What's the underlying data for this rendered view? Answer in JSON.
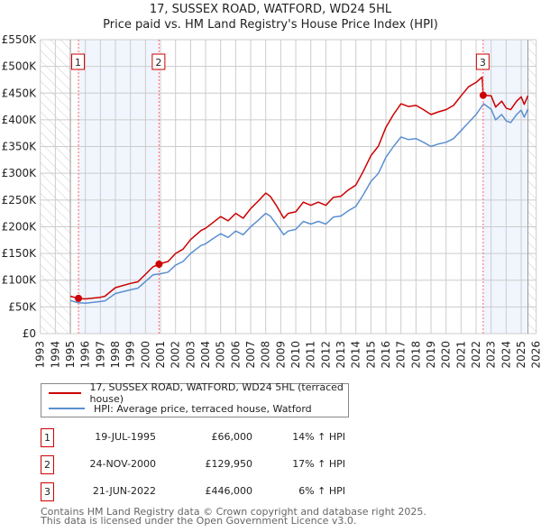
{
  "chart_data": {
    "type": "line",
    "title": "17, SUSSEX ROAD, WATFORD, WD24 5HL",
    "subtitle": "Price paid vs. HM Land Registry's House Price Index (HPI)",
    "xlim": [
      1993,
      2026
    ],
    "ylim": [
      0,
      550000
    ],
    "x_ticks": [
      1993,
      1994,
      1995,
      1996,
      1997,
      1998,
      1999,
      2000,
      2001,
      2002,
      2003,
      2004,
      2005,
      2006,
      2007,
      2008,
      2009,
      2010,
      2011,
      2012,
      2013,
      2014,
      2015,
      2016,
      2017,
      2018,
      2019,
      2020,
      2021,
      2022,
      2023,
      2024,
      2025,
      2026
    ],
    "y_ticks": [
      0,
      50000,
      100000,
      150000,
      200000,
      250000,
      300000,
      350000,
      400000,
      450000,
      500000,
      550000
    ],
    "y_tick_labels": [
      "£0",
      "£50K",
      "£100K",
      "£150K",
      "£200K",
      "£250K",
      "£300K",
      "£350K",
      "£400K",
      "£450K",
      "£500K",
      "£550K"
    ],
    "grid": true,
    "data_start": 1995.0,
    "data_end": 2025.45,
    "series": [
      {
        "name": "17, SUSSEX ROAD, WATFORD, WD24 5HL (terraced house)",
        "color": "#cc0000",
        "x": [
          1995.0,
          1995.5,
          1996,
          1997,
          1997.3,
          1998,
          1999,
          1999.5,
          2000.5,
          2000.9,
          2001,
          2001.5,
          2002,
          2002.5,
          2003,
          2003.7,
          2004,
          2004.5,
          2005,
          2005.5,
          2006,
          2006.5,
          2007,
          2007.5,
          2008,
          2008.3,
          2008.7,
          2009.2,
          2009.5,
          2010,
          2010.5,
          2011,
          2011.5,
          2012,
          2012.5,
          2013,
          2013.5,
          2014,
          2014.5,
          2015,
          2015.5,
          2016,
          2016.5,
          2017,
          2017.5,
          2018,
          2018.5,
          2019,
          2019.5,
          2020,
          2020.5,
          2021,
          2021.5,
          2022,
          2022.4,
          2022.47,
          2023,
          2023.3,
          2023.7,
          2024,
          2024.3,
          2024.7,
          2025,
          2025.2,
          2025.45
        ],
        "y": [
          70,
          66,
          65,
          68,
          70,
          86,
          94,
          97,
          125,
          130,
          131,
          135,
          150,
          158,
          176,
          193,
          197,
          208,
          219,
          211,
          225,
          216,
          234,
          248,
          263,
          257,
          240,
          216,
          225,
          228,
          246,
          240,
          246,
          240,
          255,
          257,
          269,
          278,
          304,
          333,
          351,
          386,
          410,
          430,
          425,
          427,
          419,
          410,
          415,
          419,
          427,
          445,
          462,
          470,
          480,
          446,
          445,
          424,
          435,
          422,
          419,
          435,
          443,
          429,
          445
        ]
      },
      {
        "name": "HPI: Average price, terraced house, Watford",
        "color": "#5b8fd0",
        "x": [
          1995.0,
          1995.5,
          1996,
          1997,
          1997.3,
          1998,
          1999,
          1999.5,
          2000.5,
          2001,
          2001.5,
          2002,
          2002.5,
          2003,
          2003.7,
          2004,
          2004.5,
          2005,
          2005.5,
          2006,
          2006.5,
          2007,
          2007.5,
          2008,
          2008.3,
          2008.7,
          2009.2,
          2009.5,
          2010,
          2010.5,
          2011,
          2011.5,
          2012,
          2012.5,
          2013,
          2013.5,
          2014,
          2014.5,
          2015,
          2015.5,
          2016,
          2016.5,
          2017,
          2017.5,
          2018,
          2018.5,
          2019,
          2019.5,
          2020,
          2020.5,
          2021,
          2021.5,
          2022,
          2022.5,
          2023,
          2023.3,
          2023.7,
          2024,
          2024.3,
          2024.7,
          2025,
          2025.2,
          2025.45
        ],
        "y": [
          62,
          58,
          57,
          60,
          61,
          75,
          82,
          85,
          110,
          112,
          115,
          128,
          135,
          150,
          165,
          168,
          178,
          187,
          180,
          192,
          185,
          200,
          212,
          225,
          220,
          205,
          185,
          192,
          195,
          210,
          205,
          210,
          205,
          218,
          220,
          230,
          238,
          260,
          285,
          300,
          330,
          350,
          368,
          363,
          365,
          358,
          350,
          355,
          358,
          365,
          380,
          395,
          410,
          430,
          420,
          400,
          410,
          398,
          395,
          410,
          418,
          405,
          420
        ]
      }
    ],
    "y_unit": "thousands GBP",
    "sales": [
      {
        "label": "1",
        "x": 1995.54,
        "price": 66
      },
      {
        "label": "2",
        "x": 2000.9,
        "price": 129.95
      },
      {
        "label": "3",
        "x": 2022.47,
        "price": 446
      }
    ],
    "legend_position": "below"
  },
  "table": [
    {
      "num": "1",
      "date": "19-JUL-1995",
      "price": "£66,000",
      "hpi": "14% ↑ HPI"
    },
    {
      "num": "2",
      "date": "24-NOV-2000",
      "price": "£129,950",
      "hpi": "17% ↑ HPI"
    },
    {
      "num": "3",
      "date": "21-JUN-2022",
      "price": "£446,000",
      "hpi": "6% ↑ HPI"
    }
  ],
  "footer": {
    "line1": "Contains HM Land Registry data © Crown copyright and database right 2025.",
    "line2": "This data is licensed under the Open Government Licence v3.0."
  }
}
